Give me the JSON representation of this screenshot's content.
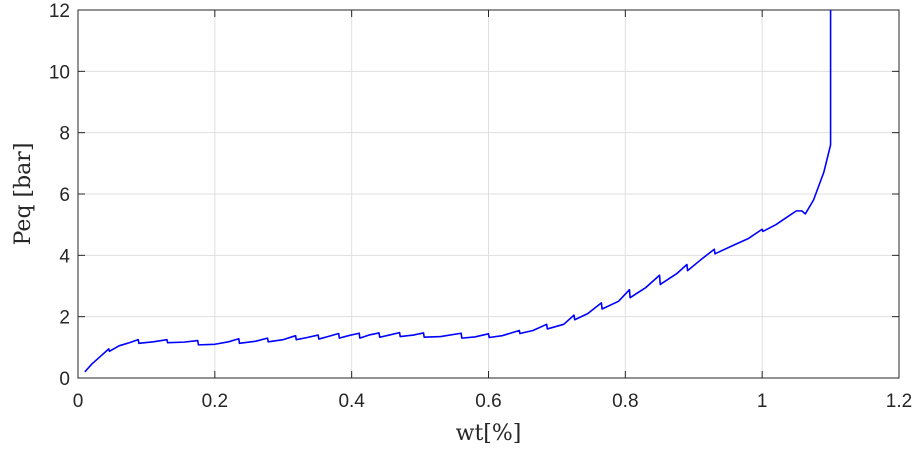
{
  "chart_data": {
    "type": "line",
    "xlabel": "wt[%]",
    "ylabel": "Peq [bar]",
    "xlim": [
      0,
      1.2
    ],
    "ylim": [
      0,
      12
    ],
    "xticks": [
      0,
      0.2,
      0.4,
      0.6,
      0.8,
      1,
      1.2
    ],
    "yticks": [
      0,
      2,
      4,
      6,
      8,
      10,
      12
    ],
    "xtick_labels": [
      "0",
      "0.2",
      "0.4",
      "0.6",
      "0.8",
      "1",
      "1.2"
    ],
    "ytick_labels": [
      "0",
      "2",
      "4",
      "6",
      "8",
      "10",
      "12"
    ],
    "grid": true,
    "series": [
      {
        "color": "#0000ff",
        "x": [
          0.01,
          0.02,
          0.03,
          0.045,
          0.046,
          0.06,
          0.075,
          0.088,
          0.089,
          0.11,
          0.13,
          0.131,
          0.155,
          0.175,
          0.176,
          0.2,
          0.22,
          0.235,
          0.236,
          0.26,
          0.277,
          0.278,
          0.3,
          0.318,
          0.319,
          0.335,
          0.351,
          0.352,
          0.365,
          0.381,
          0.382,
          0.395,
          0.411,
          0.412,
          0.425,
          0.44,
          0.441,
          0.455,
          0.47,
          0.471,
          0.49,
          0.505,
          0.506,
          0.53,
          0.56,
          0.561,
          0.58,
          0.6,
          0.601,
          0.62,
          0.645,
          0.646,
          0.665,
          0.685,
          0.686,
          0.71,
          0.725,
          0.726,
          0.745,
          0.765,
          0.766,
          0.79,
          0.806,
          0.807,
          0.83,
          0.85,
          0.851,
          0.875,
          0.89,
          0.891,
          0.91,
          0.93,
          0.931,
          0.96,
          0.98,
          1.0,
          1.001,
          1.02,
          1.04,
          1.05,
          1.058,
          1.063,
          1.075,
          1.09,
          1.1,
          1.1
        ],
        "y": [
          0.2,
          0.45,
          0.65,
          0.95,
          0.87,
          1.05,
          1.15,
          1.25,
          1.13,
          1.18,
          1.25,
          1.15,
          1.17,
          1.22,
          1.08,
          1.1,
          1.18,
          1.28,
          1.13,
          1.2,
          1.3,
          1.18,
          1.25,
          1.38,
          1.25,
          1.32,
          1.4,
          1.27,
          1.35,
          1.45,
          1.3,
          1.38,
          1.46,
          1.3,
          1.4,
          1.47,
          1.33,
          1.4,
          1.48,
          1.35,
          1.4,
          1.47,
          1.33,
          1.35,
          1.46,
          1.3,
          1.34,
          1.44,
          1.32,
          1.38,
          1.55,
          1.45,
          1.55,
          1.75,
          1.6,
          1.75,
          2.05,
          1.9,
          2.1,
          2.45,
          2.25,
          2.5,
          2.88,
          2.62,
          2.95,
          3.35,
          3.05,
          3.4,
          3.7,
          3.5,
          3.85,
          4.2,
          4.05,
          4.35,
          4.55,
          4.85,
          4.78,
          5.0,
          5.3,
          5.45,
          5.45,
          5.35,
          5.8,
          6.7,
          7.6,
          12
        ]
      }
    ]
  }
}
